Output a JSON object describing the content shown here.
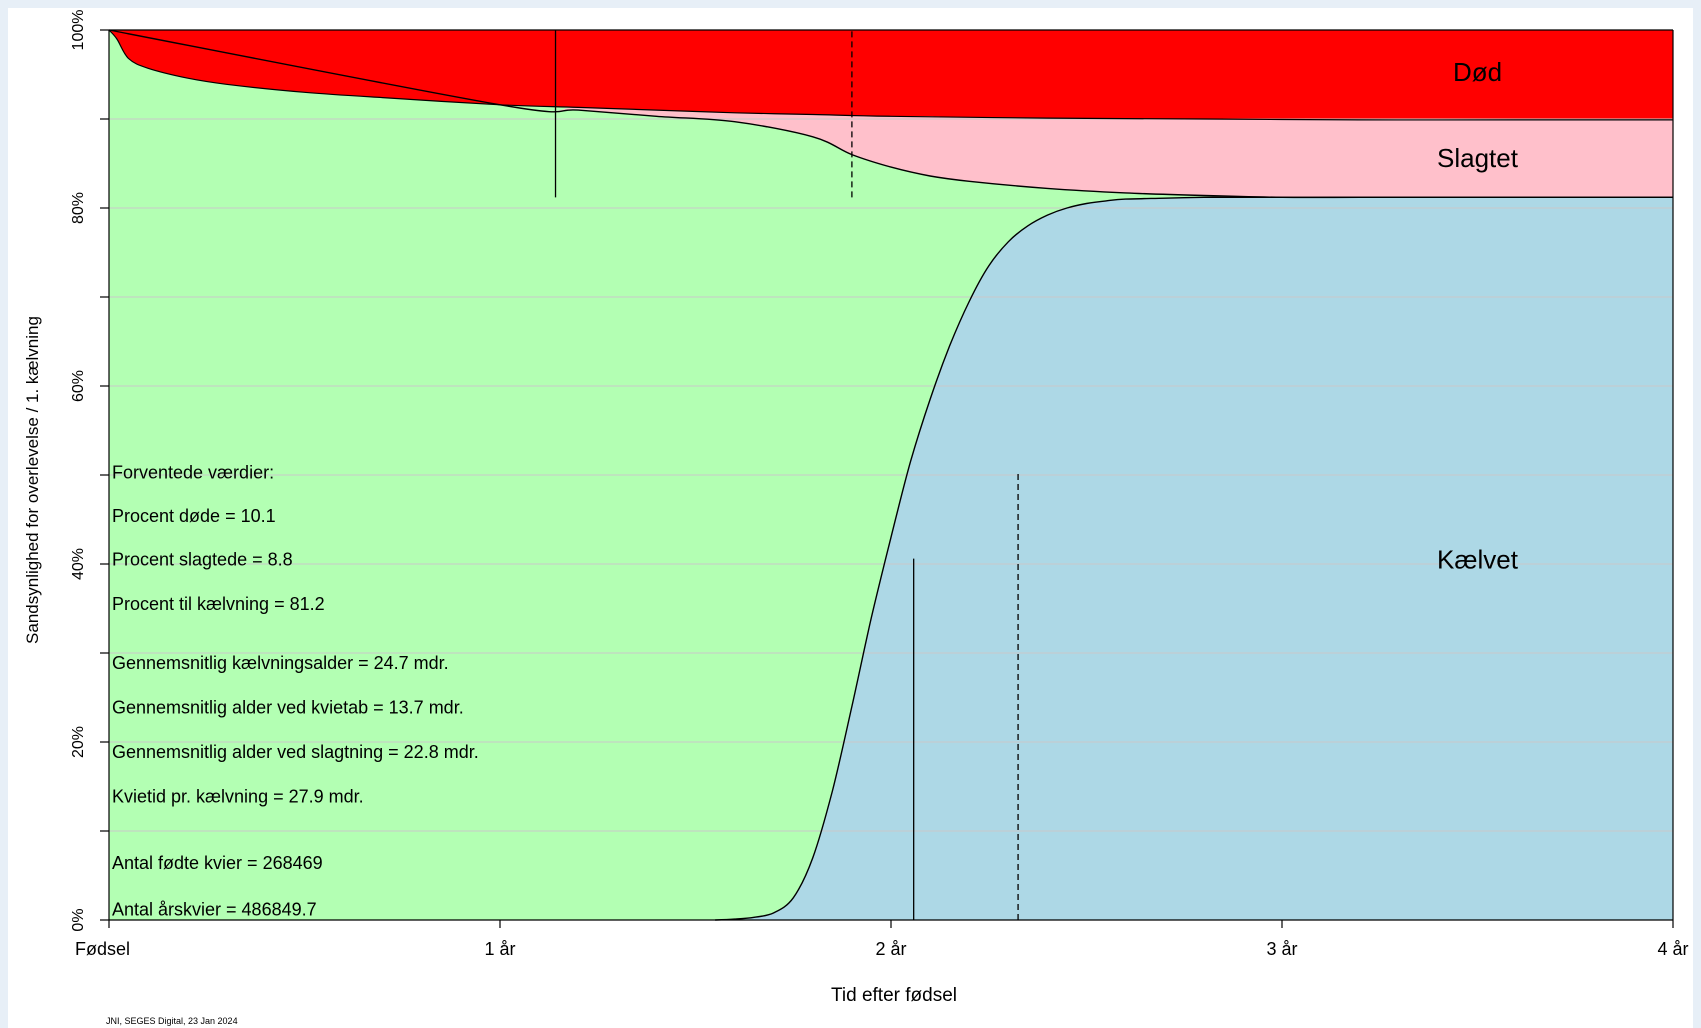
{
  "chart_data": {
    "type": "area",
    "xlabel": "Tid efter fødsel",
    "ylabel": "Sandsynlighed for overlevelse / 1. kælvning",
    "x_unit": "år",
    "xlim": [
      0,
      4
    ],
    "ylim": [
      0,
      100
    ],
    "x_ticks": [
      {
        "value": 0,
        "label": "Fødsel"
      },
      {
        "value": 1,
        "label": "1 år"
      },
      {
        "value": 2,
        "label": "2 år"
      },
      {
        "value": 3,
        "label": "3 år"
      },
      {
        "value": 4,
        "label": "4 år"
      }
    ],
    "y_ticks": [
      {
        "value": 0,
        "label": "0%"
      },
      {
        "value": 20,
        "label": "20%"
      },
      {
        "value": 40,
        "label": "40%"
      },
      {
        "value": 60,
        "label": "60%"
      },
      {
        "value": 80,
        "label": "80%"
      },
      {
        "value": 100,
        "label": "100%"
      }
    ],
    "y_minor_ticks": [
      10,
      30,
      50,
      70,
      90
    ],
    "grid": true,
    "series": [
      {
        "name": "Kælvet",
        "color": "#add8e6",
        "x": [
          0,
          1.55,
          1.6,
          1.65,
          1.7,
          1.75,
          1.8,
          1.85,
          1.9,
          1.95,
          2.0,
          2.05,
          2.1,
          2.15,
          2.2,
          2.25,
          2.3,
          2.35,
          2.4,
          2.45,
          2.5,
          2.55,
          2.6,
          2.7,
          2.8,
          2.9,
          3.0,
          3.2,
          3.4,
          4.0
        ],
        "lower": [
          0,
          0,
          0,
          0,
          0,
          0,
          0,
          0,
          0,
          0,
          0,
          0,
          0,
          0,
          0,
          0,
          0,
          0,
          0,
          0,
          0,
          0,
          0,
          0,
          0,
          0,
          0,
          0,
          0,
          0
        ],
        "upper": [
          0,
          0,
          0.1,
          0.3,
          0.8,
          2.5,
          7.0,
          14.5,
          24.0,
          34.0,
          43.0,
          51.5,
          58.5,
          64.5,
          69.5,
          73.5,
          76.2,
          78.0,
          79.2,
          80.0,
          80.5,
          80.8,
          81.0,
          81.1,
          81.2,
          81.2,
          81.2,
          81.2,
          81.2,
          81.2
        ]
      },
      {
        "name": "Slagtet",
        "color": "#ffc0cb",
        "x": [
          0,
          1.0,
          1.2,
          1.4,
          1.6,
          1.8,
          1.9,
          2.0,
          2.1,
          2.2,
          2.4,
          2.6,
          2.8,
          3.0,
          3.2,
          3.4,
          4.0
        ],
        "lower": [
          100,
          91.6,
          91.0,
          90.3,
          89.7,
          88.0,
          86.0,
          84.6,
          83.6,
          83.0,
          82.2,
          81.7,
          81.4,
          81.2,
          81.2,
          81.2,
          81.2
        ],
        "upper": [
          100,
          91.6,
          91.3,
          91.0,
          90.7,
          90.5,
          90.4,
          90.3,
          90.3,
          90.2,
          90.1,
          90.0,
          90.0,
          90.0,
          89.9,
          89.9,
          89.9
        ]
      },
      {
        "name": "Død",
        "color": "#ff0000",
        "x": [
          0,
          0.02,
          0.05,
          0.1,
          0.2,
          0.3,
          0.5,
          0.7,
          1.0,
          1.2,
          1.4,
          1.6,
          1.8,
          2.0,
          2.4,
          2.8,
          3.2,
          3.6,
          4.0
        ],
        "lower": [
          100,
          99.0,
          96.8,
          95.7,
          94.6,
          93.9,
          93.0,
          92.4,
          91.6,
          91.3,
          91.0,
          90.7,
          90.5,
          90.3,
          90.1,
          90.0,
          89.9,
          89.9,
          89.9
        ],
        "upper": [
          100,
          100,
          100,
          100,
          100,
          100,
          100,
          100,
          100,
          100,
          100,
          100,
          100,
          100,
          100,
          100,
          100,
          100,
          100
        ]
      },
      {
        "name": "",
        "color": "#b3ffb3",
        "x": [
          0,
          4
        ],
        "lower": [
          0,
          0
        ],
        "upper": [
          100,
          100
        ]
      }
    ],
    "region_labels": [
      "Død",
      "Slagtet",
      "Kælvet"
    ],
    "reference_lines": [
      {
        "x": 1.142,
        "y0": 81.2,
        "y1": 100,
        "style": "solid"
      },
      {
        "x": 1.9,
        "y0": 81.2,
        "y1": 100,
        "style": "dashed"
      },
      {
        "x": 2.058,
        "y0": 0,
        "y1": 40.6,
        "style": "solid"
      },
      {
        "x": 2.325,
        "y0": 0,
        "y1": 50.5,
        "style": "dashed"
      }
    ],
    "annotations": [
      "Forventede værdier:",
      "Procent døde = 10.1",
      "Procent slagtede = 8.8",
      "Procent til kælvning = 81.2",
      "Gennemsnitlig kælvningsalder = 24.7 mdr.",
      "Gennemsnitlig alder ved kvietab = 13.7 mdr.",
      "Gennemsnitlig alder ved slagtning = 22.8 mdr.",
      "Kvietid pr. kælvning = 27.9 mdr.",
      "Antal fødte kvier = 268469",
      "Antal årskvier = 486849.7"
    ],
    "footer": "JNI, SEGES Digital, 23 Jan 2024"
  }
}
